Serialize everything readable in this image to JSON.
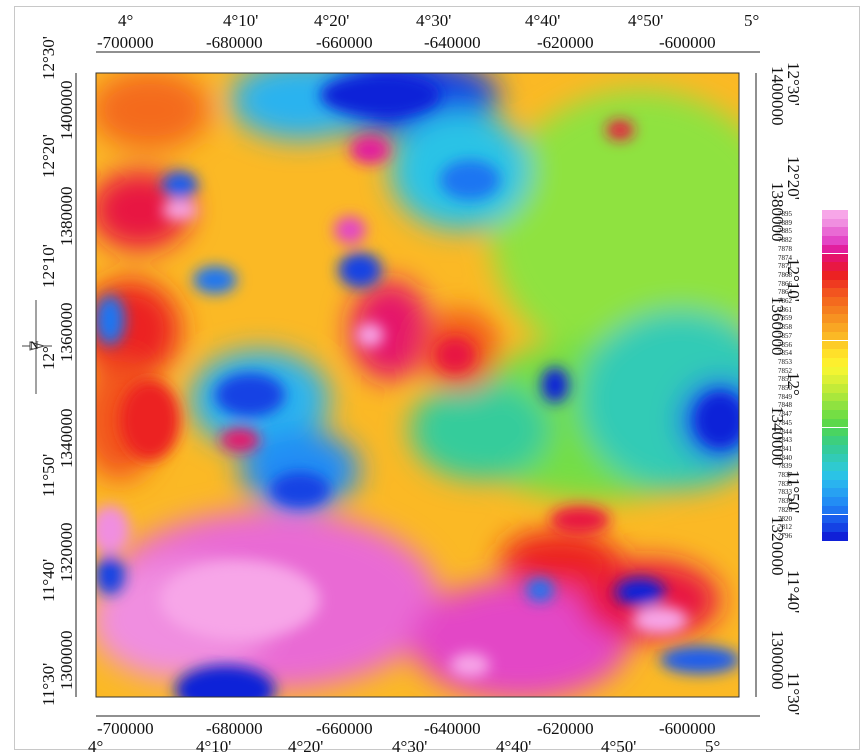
{
  "map": {
    "top_lon_labels": [
      "4°",
      "4°10'",
      "4°20'",
      "4°30'",
      "4°40'",
      "4°50'",
      "5°"
    ],
    "top_x_labels": [
      "-700000",
      "-680000",
      "-660000",
      "-640000",
      "-620000",
      "-600000"
    ],
    "bottom_x_labels": [
      "-700000",
      "-680000",
      "-660000",
      "-640000",
      "-620000",
      "-600000"
    ],
    "bottom_lon_labels": [
      "4°",
      "4°10'",
      "4°20'",
      "4°30'",
      "4°40'",
      "4°50'",
      "5°"
    ],
    "left_lat_labels": [
      "12°30'",
      "12°20'",
      "12°10'",
      "12°",
      "11°50'",
      "11°40'",
      "11°30'"
    ],
    "left_y_labels": [
      "1400000",
      "1380000",
      "1360000",
      "1340000",
      "1320000",
      "1300000"
    ],
    "right_y_labels": [
      "1400000",
      "1380000",
      "1360000",
      "1340000",
      "1320000",
      "1300000"
    ],
    "right_lat_labels": [
      "12°30'",
      "12°20'",
      "12°10'",
      "12°",
      "11°50'",
      "11°40'",
      "11°30'"
    ],
    "north_arrow_label": "N"
  },
  "legend": {
    "values": [
      "7895",
      "7889",
      "7885",
      "7882",
      "7878",
      "7874",
      "7871",
      "7868",
      "7866",
      "7864",
      "7862",
      "7861",
      "7859",
      "7858",
      "7857",
      "7856",
      "7854",
      "7853",
      "7852",
      "7851",
      "7850",
      "7849",
      "7848",
      "7847",
      "7845",
      "7844",
      "7843",
      "7841",
      "7840",
      "7839",
      "7837",
      "7835",
      "7833",
      "7830",
      "7826",
      "7820",
      "7812",
      "7796"
    ],
    "colors": [
      "#f7a6e8",
      "#f08ee0",
      "#e96ad4",
      "#e346c6",
      "#e21f9e",
      "#e5146a",
      "#e81843",
      "#ec2222",
      "#ef3a20",
      "#f2541f",
      "#f46a1e",
      "#f57e1f",
      "#f79221",
      "#f9a623",
      "#fbb925",
      "#fdcc27",
      "#ffe02a",
      "#fdef2e",
      "#f2f532",
      "#dcf036",
      "#c3eb38",
      "#a9e73c",
      "#8fe240",
      "#74de44",
      "#5cd84b",
      "#4ad461",
      "#3dcf7e",
      "#35cc9b",
      "#32cbb6",
      "#2fcad0",
      "#2bc3e6",
      "#2ab3ef",
      "#27a1f2",
      "#238df4",
      "#1f76f2",
      "#1a5ded",
      "#1542e4",
      "#1020d8"
    ]
  }
}
